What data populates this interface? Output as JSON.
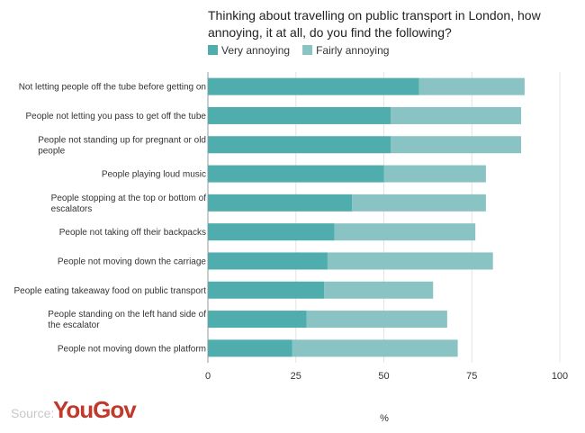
{
  "chart_data": {
    "type": "bar",
    "orientation": "horizontal",
    "stacked": true,
    "title_lines": [
      "Thinking about travelling on public transport in London, how",
      "annoying, it at all, do you find the following?"
    ],
    "categories": [
      [
        "Not letting people off the tube before getting on"
      ],
      [
        "People not letting you pass to get off the tube"
      ],
      [
        "People not standing up for pregnant or old",
        "people"
      ],
      [
        "People playing loud music"
      ],
      [
        "People stopping at the top or bottom of",
        "escalators"
      ],
      [
        "People not taking off their backpacks"
      ],
      [
        "People not moving down the carriage"
      ],
      [
        "People eating takeaway food on public transport"
      ],
      [
        "People standing on the left hand side of",
        "the escalator"
      ],
      [
        "People not moving down the platform"
      ]
    ],
    "series": [
      {
        "name": "Very annoying",
        "color": "#50adad",
        "values": [
          60,
          52,
          52,
          50,
          41,
          36,
          34,
          33,
          28,
          24
        ]
      },
      {
        "name": "Fairly annoying",
        "color": "#8ac3c3",
        "values": [
          30,
          37,
          37,
          29,
          38,
          40,
          47,
          31,
          40,
          47
        ]
      }
    ],
    "xlim": [
      0,
      100
    ],
    "xticks": [
      "0",
      "25",
      "50",
      "75",
      "100"
    ],
    "xlabel": "%",
    "legend_position": "top",
    "grid": true
  },
  "branding": {
    "source_label": "Source:",
    "brand_name": "YouGov"
  }
}
